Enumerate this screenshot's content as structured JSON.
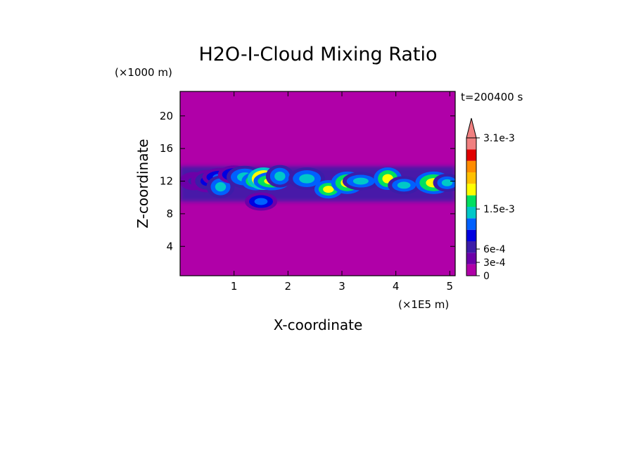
{
  "chart_data": {
    "type": "heatmap",
    "title": "H2O-I-Cloud Mixing Ratio",
    "xlabel": "X-coordinate",
    "ylabel": "Z-coordinate",
    "x_unit": "(×1E5 m)",
    "y_unit": "(×1000 m)",
    "time_label": "t=200400 s",
    "xlim": [
      0,
      5.1
    ],
    "ylim": [
      0.4,
      23
    ],
    "x_ticks": [
      "1",
      "2",
      "3",
      "4",
      "5"
    ],
    "y_ticks": [
      "4",
      "8",
      "12",
      "16",
      "20"
    ],
    "background_value": 0,
    "background_color": "#b000a8",
    "cloud_layer": {
      "z_range": [
        9.5,
        13.8
      ],
      "x_range": [
        0,
        5.1
      ]
    },
    "colorbar": {
      "tick_labels": [
        "3.1e-3",
        "1.5e-3",
        "6e-4",
        "3e-4",
        "0"
      ],
      "tick_values": [
        0.0031,
        0.0015,
        0.0006,
        0.0003,
        0
      ],
      "colors": [
        "#b000a8",
        "#6c00a8",
        "#3c1ca8",
        "#0000e0",
        "#0060ff",
        "#00c8c8",
        "#00e060",
        "#ffff00",
        "#ffc000",
        "#ff8c00",
        "#e00000",
        "#f08080"
      ],
      "extend": "max"
    },
    "cells": [
      {
        "x": 0.25,
        "z": 12.0,
        "level": 2
      },
      {
        "x": 0.5,
        "z": 12.0,
        "level": 3
      },
      {
        "x": 0.75,
        "z": 12.5,
        "level": 4
      },
      {
        "x": 0.75,
        "z": 11.3,
        "level": 5
      },
      {
        "x": 1.0,
        "z": 12.8,
        "level": 4
      },
      {
        "x": 1.2,
        "z": 12.5,
        "level": 5
      },
      {
        "x": 1.4,
        "z": 12.0,
        "level": 7
      },
      {
        "x": 1.55,
        "z": 12.3,
        "level": 8
      },
      {
        "x": 1.7,
        "z": 12.0,
        "level": 7
      },
      {
        "x": 1.85,
        "z": 12.6,
        "level": 5
      },
      {
        "x": 1.5,
        "z": 9.5,
        "level": 4
      },
      {
        "x": 2.35,
        "z": 12.3,
        "level": 5
      },
      {
        "x": 2.75,
        "z": 11.0,
        "level": 7
      },
      {
        "x": 3.1,
        "z": 11.8,
        "level": 7
      },
      {
        "x": 3.35,
        "z": 12.0,
        "level": 5
      },
      {
        "x": 3.85,
        "z": 12.3,
        "level": 7
      },
      {
        "x": 4.15,
        "z": 11.5,
        "level": 5
      },
      {
        "x": 4.7,
        "z": 11.8,
        "level": 7
      },
      {
        "x": 4.95,
        "z": 11.8,
        "level": 5
      }
    ]
  }
}
